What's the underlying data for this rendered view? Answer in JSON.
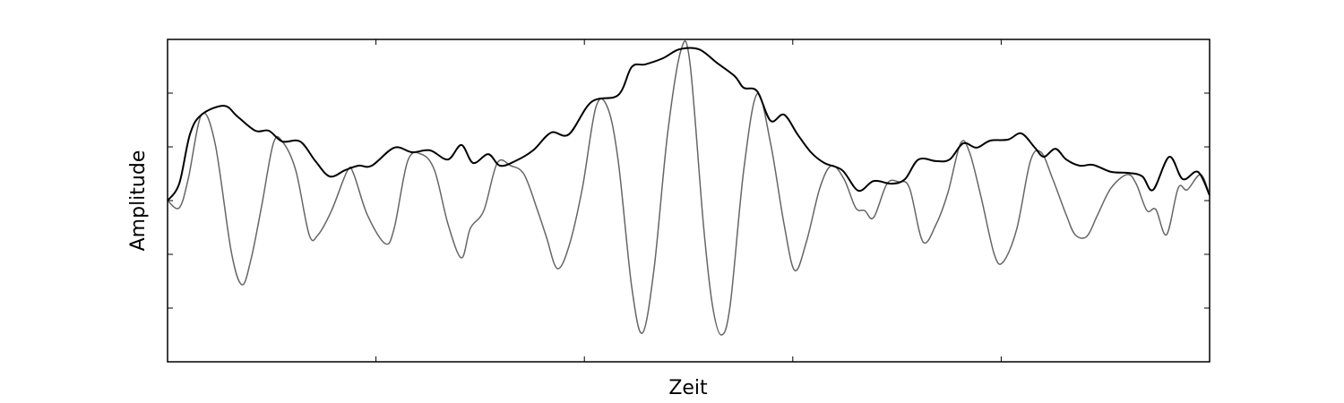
{
  "chart_data": {
    "type": "line",
    "xlabel": "Zeit",
    "ylabel": "Amplitude",
    "xlim": [
      0,
      100
    ],
    "xticks": [
      20,
      40,
      60,
      80
    ],
    "ylim": [
      -6,
      6
    ],
    "yticks": [
      -4,
      -2,
      0,
      2,
      4
    ],
    "series": [
      {
        "color": "#666666",
        "x": [
          0,
          1.12,
          1.98,
          3.27,
          4.56,
          6.1,
          7.14,
          8.0,
          9.03,
          10.15,
          11.01,
          12.3,
          13.59,
          14.45,
          15.74,
          17.28,
          17.88,
          19.17,
          20.89,
          21.75,
          23.04,
          24.33,
          25.62,
          26.91,
          28.2,
          29.06,
          30.35,
          31.64,
          32.93,
          34.22,
          35.51,
          36.37,
          37.4,
          38.52,
          39.81,
          41.1,
          42.22,
          43.25,
          44.54,
          45.57,
          46.69,
          47.98,
          49.27,
          50.13,
          51.42,
          52.28,
          53.14,
          54.0,
          55.29,
          56.58,
          57.87,
          59.16,
          60.19,
          61.31,
          62.6,
          63.71,
          64.92,
          66.04,
          66.9,
          67.76,
          69.05,
          70.16,
          71.2,
          72.49,
          73.77,
          74.89,
          76.1,
          76.96,
          78.07,
          79.36,
          80.22,
          81.51,
          82.8,
          83.83,
          84.95,
          86.24,
          87.1,
          88.22,
          89.25,
          90.54,
          92.09,
          92.95,
          93.98,
          94.84,
          95.87,
          96.99,
          97.85,
          99.14,
          100
        ],
        "values": [
          0,
          -0.27,
          0.8,
          3.2,
          2.13,
          -1.87,
          -3.13,
          -2.2,
          -0.2,
          2.13,
          2.2,
          1.13,
          -1.27,
          -1.27,
          -0.37,
          1.13,
          0.97,
          -0.53,
          -1.6,
          -1.03,
          1.47,
          1.73,
          1.13,
          -0.87,
          -2.13,
          -1.03,
          -0.37,
          1.4,
          1.3,
          0.97,
          -0.37,
          -1.37,
          -2.53,
          -1.7,
          0.47,
          3.47,
          3.47,
          1.47,
          -3.2,
          -4.93,
          -2.53,
          2.47,
          5.6,
          5.13,
          -0.87,
          -3.87,
          -5,
          -3.87,
          1.13,
          3.97,
          2.13,
          -0.87,
          -2.6,
          -1.53,
          0.47,
          1.3,
          0.8,
          -0.27,
          -0.37,
          -0.63,
          0.63,
          0.7,
          0.47,
          -1.53,
          -0.87,
          0.3,
          2.13,
          1.8,
          0.13,
          -2.03,
          -2.27,
          -1.03,
          1.47,
          1.8,
          0.8,
          -0.53,
          -1.27,
          -1.33,
          -0.53,
          0.47,
          0.97,
          0.63,
          -0.37,
          -0.33,
          -1.27,
          0.47,
          0.4,
          0.97,
          0.2
        ]
      },
      {
        "color": "#000000",
        "x": [
          0,
          1.12,
          2.15,
          3.27,
          5.42,
          6.71,
          8.43,
          9.72,
          11.01,
          12.73,
          14.19,
          15.56,
          17.03,
          18.31,
          19.6,
          21.75,
          23.47,
          25.19,
          26.91,
          28.2,
          29.32,
          30.78,
          31.9,
          33.36,
          35.08,
          36.8,
          38.52,
          40.67,
          43.25,
          44.54,
          45.83,
          47.55,
          49.1,
          50.99,
          52.71,
          54.43,
          55.29,
          56.58,
          57.87,
          59.16,
          60.45,
          61.74,
          63.03,
          64.75,
          66.29,
          67.76,
          69.48,
          70.77,
          72.06,
          73.77,
          75.06,
          76.35,
          77.64,
          78.93,
          80.65,
          81.94,
          83.23,
          84.09,
          85.21,
          86.24,
          87.53,
          88.82,
          90.54,
          92.26,
          93.55,
          94.58,
          96.13,
          97.42,
          98.88,
          100
        ],
        "values": [
          0,
          0.63,
          2.47,
          3.2,
          3.53,
          3.13,
          2.6,
          2.6,
          2.2,
          2.2,
          1.47,
          0.9,
          1.13,
          1.3,
          1.3,
          1.97,
          1.8,
          1.87,
          1.53,
          2.07,
          1.4,
          1.73,
          1.3,
          1.47,
          1.87,
          2.53,
          2.47,
          3.67,
          3.93,
          4.97,
          5.07,
          5.3,
          5.63,
          5.63,
          5.13,
          4.63,
          4.2,
          4.07,
          2.97,
          3.2,
          2.47,
          1.8,
          1.4,
          1.13,
          0.37,
          0.73,
          0.63,
          0.8,
          1.53,
          1.47,
          1.53,
          2.13,
          1.97,
          2.23,
          2.27,
          2.5,
          1.97,
          1.63,
          1.93,
          1.53,
          1.3,
          1.33,
          1.07,
          1.03,
          0.9,
          0.4,
          1.63,
          0.8,
          1.07,
          0.2
        ]
      }
    ]
  }
}
